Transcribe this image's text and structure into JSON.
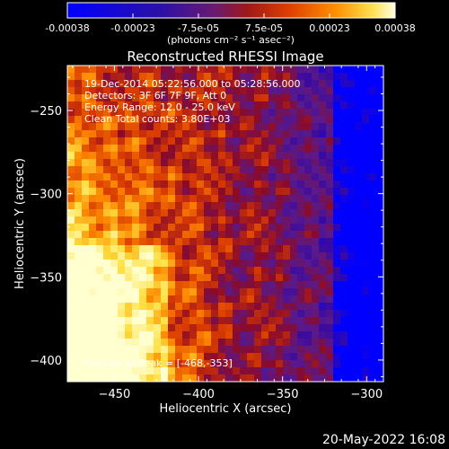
{
  "colorbar": {
    "tick_labels": [
      "-0.00038",
      "-0.00023",
      "-7.5e-05",
      "7.5e-05",
      "0.00023",
      "0.00038"
    ],
    "unit_label": "(photons cm⁻² s⁻¹ asec⁻²)",
    "range": [
      -0.00038,
      0.00038
    ]
  },
  "chart_data": {
    "type": "heatmap",
    "title": "Reconstructed RHESSI Image",
    "xlabel": "Heliocentric X (arcsec)",
    "ylabel": "Heliocentric Y (arcsec)",
    "xlim": [
      -478,
      -290
    ],
    "ylim": [
      -413,
      -223
    ],
    "x_ticks": [
      -450,
      -400,
      -350,
      -300
    ],
    "y_ticks": [
      -250,
      -300,
      -350,
      -400
    ],
    "x_tick_labels": [
      "−450",
      "−400",
      "−350",
      "−300"
    ],
    "y_tick_labels": [
      "−250",
      "−300",
      "−350",
      "−400"
    ],
    "annotations": [
      "19-Dec-2014 05:22:56.000 to 05:28:56.000",
      "Detectors: 3F 6F 7F 9F, Att 0",
      "Energy Range: 12.0 - 25.0 keV",
      "Clean     Total counts: 3.80E+03"
    ],
    "peak_label": "Position of Peak = [-468,-353]",
    "peak_position": [
      -468,
      -353
    ],
    "colormap_stops": [
      "#0000ff",
      "#3a0aa0",
      "#5a1a8a",
      "#8a0a2a",
      "#d83a00",
      "#ff8a00",
      "#ffe040",
      "#ffffd0"
    ]
  },
  "footer": {
    "date": "20-May-2022 16:08"
  }
}
